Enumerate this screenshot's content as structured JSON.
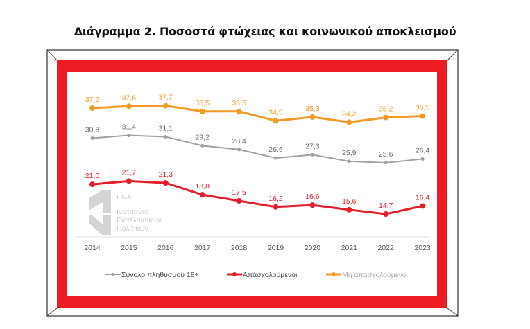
{
  "title": "Διάγραμμα 2. Ποσοστά φτώχειας και κοινωνικού αποκλεισμού",
  "logo": {
    "name": "ENA",
    "line1": "Ινστιτούτο",
    "line2": "Εναλλακτικών",
    "line3": "Πολιτικών"
  },
  "colors": {
    "frame": "#ed1c24",
    "grey": "#a0a0a0",
    "red": "#e31e2a",
    "orange": "#f39a26"
  },
  "chart_data": {
    "type": "line",
    "categories": [
      "2014",
      "2015",
      "2016",
      "2017",
      "2018",
      "2019",
      "2020",
      "2021",
      "2022",
      "2023"
    ],
    "series": [
      {
        "name": "Σύνολο πληθυσμού 18+",
        "color": "#a0a0a0",
        "values": [
          30.8,
          31.4,
          31.1,
          29.2,
          28.4,
          26.6,
          27.3,
          25.9,
          25.6,
          26.4
        ],
        "labels": [
          "30,8",
          "31,4",
          "31,1",
          "29,2",
          "28,4",
          "26,6",
          "27,3",
          "25,9",
          "25,6",
          "26,4"
        ]
      },
      {
        "name": "Απασχολούμενοι",
        "color": "#e31e2a",
        "values": [
          21.0,
          21.7,
          21.3,
          18.8,
          17.5,
          16.2,
          16.6,
          15.6,
          14.7,
          16.4
        ],
        "labels": [
          "21,0",
          "21,7",
          "21,3",
          "18,8",
          "17,5",
          "16,2",
          "16,6",
          "15,6",
          "14,7",
          "16,4"
        ]
      },
      {
        "name": "Μη απασχολούμενοι",
        "color": "#f39a26",
        "values": [
          37.2,
          37.6,
          37.7,
          36.5,
          36.5,
          34.5,
          35.3,
          34.2,
          35.2,
          35.5
        ],
        "labels": [
          "37,2",
          "37,6",
          "37,7",
          "36,5",
          "36,5",
          "34,5",
          "35,3",
          "34,2",
          "35,2",
          "35,5"
        ]
      }
    ],
    "legend": "bottom",
    "grid": false
  }
}
